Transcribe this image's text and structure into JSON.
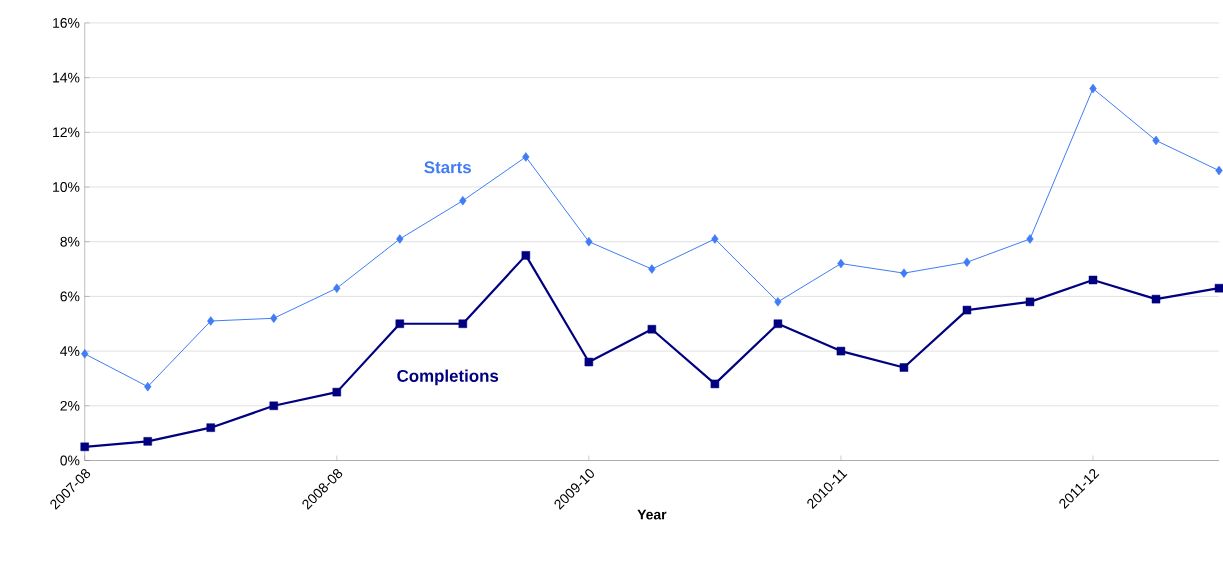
{
  "chart_data": {
    "type": "line",
    "xlabel": "Year",
    "categories": [
      "2007-08",
      null,
      null,
      null,
      "2008-08",
      null,
      null,
      null,
      "2009-10",
      null,
      null,
      null,
      "2010-11",
      null,
      null,
      null,
      "2011-12",
      null,
      null
    ],
    "series": [
      {
        "name": "Starts",
        "color": "#3f7cf5",
        "marker": "diamond",
        "values": [
          3.9,
          2.7,
          5.1,
          5.2,
          6.3,
          8.1,
          9.5,
          11.1,
          8.0,
          7.0,
          8.1,
          5.8,
          7.2,
          6.85,
          7.25,
          8.1,
          13.6,
          11.7,
          10.6
        ]
      },
      {
        "name": "Completions",
        "color": "#000080",
        "marker": "square",
        "values": [
          0.5,
          0.7,
          1.2,
          2.0,
          2.5,
          5.0,
          5.0,
          7.5,
          3.6,
          4.8,
          2.8,
          5.0,
          4.0,
          3.4,
          5.5,
          5.8,
          6.6,
          5.9,
          6.3
        ]
      }
    ],
    "ylim": [
      0,
      16
    ],
    "yticks": [
      {
        "value": 0,
        "label": "0%"
      },
      {
        "value": 2,
        "label": "2%"
      },
      {
        "value": 4,
        "label": "4%"
      },
      {
        "value": 6,
        "label": "6%"
      },
      {
        "value": 8,
        "label": "8%"
      },
      {
        "value": 10,
        "label": "10%"
      },
      {
        "value": 12,
        "label": "12%"
      },
      {
        "value": 14,
        "label": "14%"
      },
      {
        "value": 16,
        "label": "16%"
      }
    ],
    "grid": "y"
  }
}
